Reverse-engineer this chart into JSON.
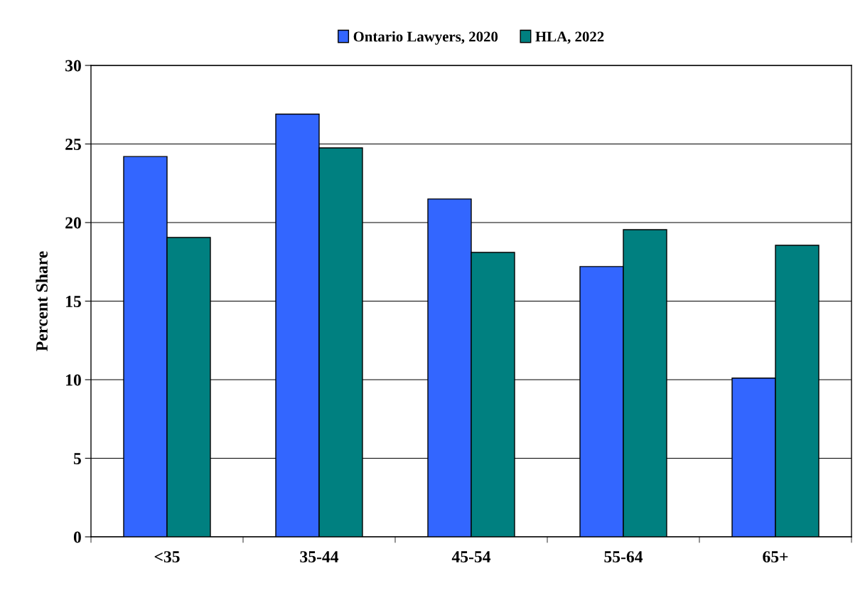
{
  "chart_data": {
    "type": "bar",
    "ylabel": "Percent Share",
    "categories": [
      "<35",
      "35-44",
      "45-54",
      "55-64",
      "65+"
    ],
    "series": [
      {
        "name": "Ontario Lawyers, 2020",
        "color": "#3366ff",
        "values": [
          24.2,
          26.9,
          21.5,
          17.2,
          10.1
        ]
      },
      {
        "name": "HLA, 2022",
        "color": "#008080",
        "values": [
          19.05,
          24.75,
          18.1,
          19.55,
          18.55
        ]
      }
    ],
    "ylim": [
      0,
      30
    ],
    "yticks": [
      0,
      5,
      10,
      15,
      20,
      25,
      30
    ],
    "grid": "y",
    "legend": "top"
  }
}
